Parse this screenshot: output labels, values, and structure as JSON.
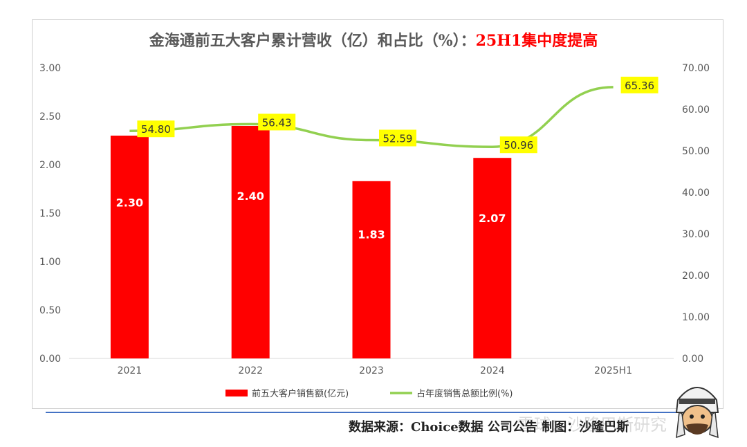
{
  "chart_data": {
    "type": "bar+line",
    "title": "金海通前五大客户累计营收（亿）和占比（%）：",
    "title_highlight": "25H1集中度提高",
    "categories": [
      "2021",
      "2022",
      "2023",
      "2024",
      "2025H1"
    ],
    "series": [
      {
        "name": "前五大客户销售额(亿元)",
        "type": "bar",
        "axis": "left",
        "color": "#ff0000",
        "values": [
          2.3,
          2.4,
          1.83,
          2.07,
          null
        ],
        "labels": [
          "2.30",
          "2.40",
          "1.83",
          "2.07",
          ""
        ]
      },
      {
        "name": "占年度销售总额比例(%)",
        "type": "line",
        "axis": "right",
        "color": "#92d050",
        "label_bg": "#ffff00",
        "values": [
          54.8,
          56.43,
          52.59,
          50.96,
          65.36
        ],
        "labels": [
          "54.80",
          "56.43",
          "52.59",
          "50.96",
          "65.36"
        ]
      }
    ],
    "y_left": {
      "min": 0,
      "max": 3.0,
      "ticks": [
        "0.00",
        "0.50",
        "1.00",
        "1.50",
        "2.00",
        "2.50",
        "3.00"
      ]
    },
    "y_right": {
      "min": 0,
      "max": 70,
      "ticks": [
        "0.00",
        "10.00",
        "20.00",
        "30.00",
        "40.00",
        "50.00",
        "60.00",
        "70.00"
      ]
    },
    "legend_position": "bottom"
  },
  "footer": {
    "source": "数据来源：Choice数据  公司公告  制图：沙隆巴斯",
    "watermark": "雪球：沙隆巴斯研究"
  }
}
